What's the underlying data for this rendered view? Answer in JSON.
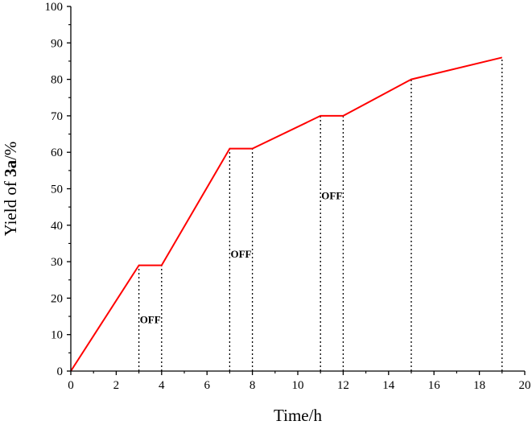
{
  "chart_data": {
    "type": "line",
    "title": "",
    "xlabel": "Time/h",
    "ylabel_prefix": "Yield of ",
    "ylabel_bold": "3a",
    "ylabel_suffix": "/%",
    "xlim": [
      0,
      20
    ],
    "ylim": [
      0,
      100
    ],
    "x_ticks": [
      0,
      2,
      4,
      6,
      8,
      10,
      12,
      14,
      16,
      18,
      20
    ],
    "y_ticks": [
      0,
      10,
      20,
      30,
      40,
      50,
      60,
      70,
      80,
      90,
      100
    ],
    "grid": false,
    "legend": "none",
    "line_color": "#ff0000",
    "series": [
      {
        "x": [
          0,
          3,
          4,
          7,
          8,
          11,
          12,
          15,
          19
        ],
        "y": [
          0,
          29,
          29,
          61,
          61,
          70,
          70,
          80,
          86
        ]
      }
    ],
    "dotted_lines_at_x": [
      3,
      4,
      7,
      8,
      11,
      12,
      15,
      19
    ],
    "annotations": [
      {
        "text": "OFF",
        "x": 3.5,
        "y": 14
      },
      {
        "text": "OFF",
        "x": 7.5,
        "y": 32
      },
      {
        "text": "OFF",
        "x": 11.5,
        "y": 48
      }
    ]
  }
}
